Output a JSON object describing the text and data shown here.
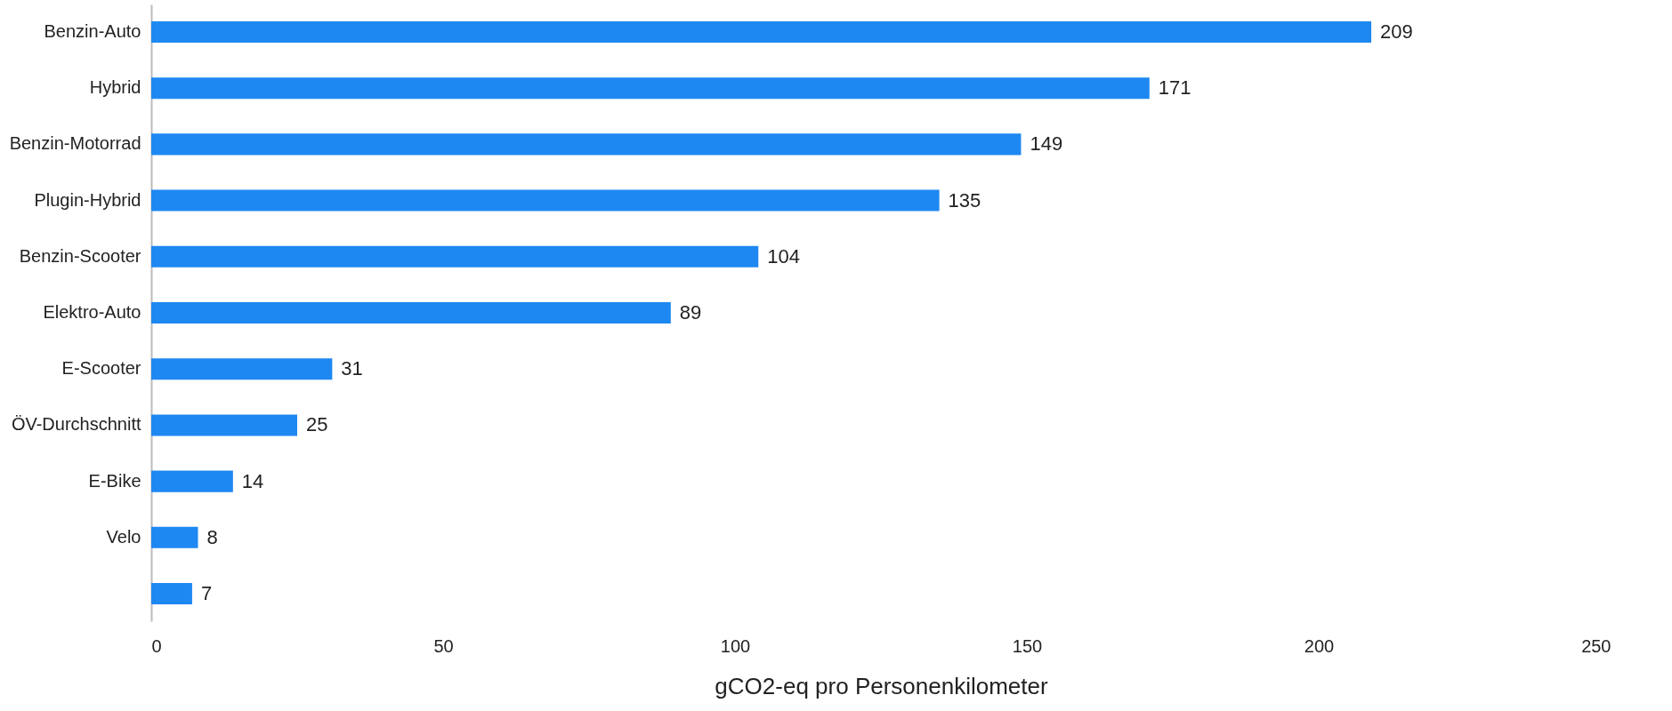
{
  "chart_data": {
    "type": "bar",
    "orientation": "horizontal",
    "xlabel": "gCO2-eq pro Personenkilometer",
    "categories": [
      "Benzin-Auto",
      "Hybrid",
      "Benzin-Motorrad",
      "Plugin-Hybrid",
      "Benzin-Scooter",
      "Elektro-Auto",
      "E-Scooter",
      "ÖV-Durchschnitt",
      "E-Bike",
      "Velo",
      null
    ],
    "values": [
      209,
      171,
      149,
      135,
      104,
      89,
      31,
      25,
      14,
      8,
      7
    ],
    "color": "#1e88f2",
    "xlim": [
      0,
      250
    ],
    "xticks": [
      0,
      50,
      100,
      150,
      200,
      250
    ],
    "grid": false,
    "data_labels": true
  }
}
